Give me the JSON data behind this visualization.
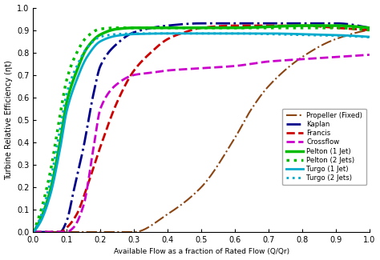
{
  "title": "",
  "xlabel": "Available Flow as a fraction of Rated Flow (Q/Qr)",
  "ylabel": "Turbine Relative Efficiency (ηt)",
  "xlim": [
    0,
    1
  ],
  "ylim": [
    0,
    1
  ],
  "xticks": [
    0,
    0.1,
    0.2,
    0.3,
    0.4,
    0.5,
    0.6,
    0.7,
    0.8,
    0.9,
    1
  ],
  "yticks": [
    0,
    0.1,
    0.2,
    0.3,
    0.4,
    0.5,
    0.6,
    0.7,
    0.8,
    0.9,
    1
  ],
  "background_color": "#ffffff",
  "curves": {
    "propeller": {
      "color": "#8B4513",
      "linestyle": "-.",
      "linewidth": 1.5,
      "label": "Propeller (Fixed)",
      "x": [
        0.0,
        0.1,
        0.2,
        0.3,
        0.4,
        0.5,
        0.6,
        0.65,
        0.7,
        0.8,
        0.9,
        1.0
      ],
      "y": [
        0.0,
        0.0,
        0.0,
        0.0,
        0.08,
        0.2,
        0.42,
        0.55,
        0.65,
        0.78,
        0.86,
        0.9
      ]
    },
    "kaplan": {
      "color": "#00008B",
      "linestyle": "-.",
      "linewidth": 2.0,
      "label": "Kaplan",
      "x": [
        0.0,
        0.05,
        0.08,
        0.1,
        0.12,
        0.15,
        0.18,
        0.2,
        0.25,
        0.3,
        0.4,
        0.5,
        0.6,
        0.7,
        0.8,
        0.9,
        1.0
      ],
      "y": [
        0.0,
        0.0,
        0.0,
        0.05,
        0.18,
        0.38,
        0.62,
        0.74,
        0.84,
        0.89,
        0.92,
        0.93,
        0.93,
        0.93,
        0.93,
        0.93,
        0.91
      ]
    },
    "francis": {
      "color": "#cc0000",
      "linestyle": "--",
      "linewidth": 2.0,
      "label": "Francis",
      "x": [
        0.0,
        0.05,
        0.08,
        0.1,
        0.13,
        0.16,
        0.2,
        0.25,
        0.3,
        0.35,
        0.4,
        0.45,
        0.5,
        0.6,
        0.7,
        0.8,
        0.9,
        1.0
      ],
      "y": [
        0.0,
        0.0,
        0.0,
        0.02,
        0.08,
        0.2,
        0.38,
        0.58,
        0.72,
        0.8,
        0.86,
        0.89,
        0.91,
        0.92,
        0.92,
        0.92,
        0.91,
        0.9
      ]
    },
    "crossflow": {
      "color": "#cc00cc",
      "linestyle": "--",
      "linewidth": 2.0,
      "label": "Crossflow",
      "x": [
        0.0,
        0.05,
        0.08,
        0.1,
        0.12,
        0.15,
        0.18,
        0.2,
        0.25,
        0.3,
        0.35,
        0.4,
        0.5,
        0.6,
        0.7,
        0.8,
        0.9,
        1.0
      ],
      "y": [
        0.0,
        0.0,
        0.0,
        0.0,
        0.02,
        0.12,
        0.38,
        0.55,
        0.66,
        0.7,
        0.71,
        0.72,
        0.73,
        0.74,
        0.76,
        0.77,
        0.78,
        0.79
      ]
    },
    "pelton1": {
      "color": "#00bb00",
      "linestyle": "-",
      "linewidth": 2.5,
      "label": "Pelton (1 Jet)",
      "x": [
        0.0,
        0.02,
        0.05,
        0.08,
        0.1,
        0.13,
        0.16,
        0.2,
        0.25,
        0.3,
        0.4,
        0.5,
        0.6,
        0.7,
        0.8,
        0.9,
        1.0
      ],
      "y": [
        0.0,
        0.05,
        0.18,
        0.4,
        0.58,
        0.72,
        0.82,
        0.88,
        0.905,
        0.91,
        0.91,
        0.91,
        0.91,
        0.915,
        0.92,
        0.92,
        0.91
      ]
    },
    "pelton2": {
      "color": "#00bb00",
      "linestyle": ":",
      "linewidth": 2.5,
      "label": "Pelton (2 Jets)",
      "x": [
        0.0,
        0.02,
        0.05,
        0.08,
        0.1,
        0.13,
        0.16,
        0.2,
        0.25,
        0.3,
        0.4,
        0.5,
        0.6,
        0.7,
        0.8,
        0.9,
        1.0
      ],
      "y": [
        0.0,
        0.08,
        0.26,
        0.52,
        0.68,
        0.8,
        0.87,
        0.905,
        0.91,
        0.91,
        0.91,
        0.91,
        0.91,
        0.91,
        0.91,
        0.91,
        0.9
      ]
    },
    "turgo1": {
      "color": "#00aacc",
      "linestyle": "-",
      "linewidth": 2.0,
      "label": "Turgo (1 Jet)",
      "x": [
        0.0,
        0.02,
        0.05,
        0.08,
        0.1,
        0.13,
        0.16,
        0.2,
        0.25,
        0.3,
        0.4,
        0.5,
        0.6,
        0.7,
        0.8,
        0.9,
        1.0
      ],
      "y": [
        0.0,
        0.04,
        0.16,
        0.37,
        0.54,
        0.68,
        0.78,
        0.85,
        0.875,
        0.882,
        0.885,
        0.885,
        0.885,
        0.885,
        0.882,
        0.878,
        0.87
      ]
    },
    "turgo2": {
      "color": "#00aacc",
      "linestyle": ":",
      "linewidth": 2.0,
      "label": "Turgo (2 Jets)",
      "x": [
        0.0,
        0.02,
        0.05,
        0.08,
        0.1,
        0.13,
        0.16,
        0.2,
        0.25,
        0.3,
        0.4,
        0.5,
        0.6,
        0.7,
        0.8,
        0.9,
        1.0
      ],
      "y": [
        0.0,
        0.06,
        0.22,
        0.46,
        0.62,
        0.74,
        0.82,
        0.87,
        0.882,
        0.885,
        0.885,
        0.885,
        0.885,
        0.882,
        0.878,
        0.875,
        0.868
      ]
    }
  }
}
